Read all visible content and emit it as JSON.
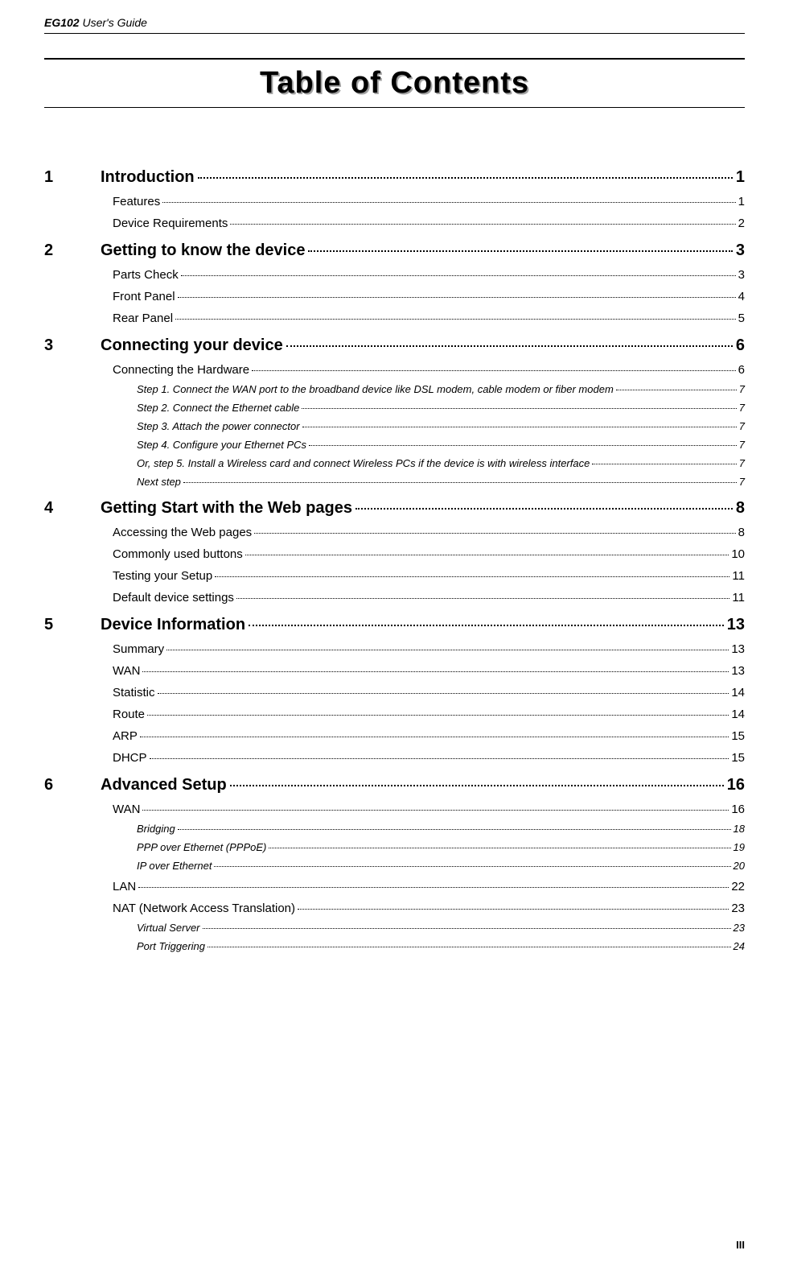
{
  "header": {
    "product": "EG102",
    "doc_type": "User's Guide"
  },
  "toc_title": "Table of Contents",
  "page_number": "III",
  "sections": [
    {
      "num": "1",
      "title": "Introduction",
      "page": "1",
      "subs": [
        {
          "title": "Features",
          "page": "1"
        },
        {
          "title": "Device Requirements",
          "page": "2"
        }
      ]
    },
    {
      "num": "2",
      "title": "Getting to know the device",
      "page": "3",
      "subs": [
        {
          "title": "Parts Check",
          "page": "3"
        },
        {
          "title": "Front Panel",
          "page": "4"
        },
        {
          "title": "Rear Panel",
          "page": "5"
        }
      ]
    },
    {
      "num": "3",
      "title": "Connecting your device",
      "page": "6",
      "subs": [
        {
          "title": "Connecting the Hardware",
          "page": "6",
          "subs2": [
            {
              "title": "Step 1. Connect the WAN port to the broadband device like DSL modem, cable modem or fiber modem",
              "page": "7"
            },
            {
              "title": "Step 2. Connect the Ethernet cable",
              "page": "7"
            },
            {
              "title": "Step 3. Attach the power connector",
              "page": "7"
            },
            {
              "title": "Step 4. Configure your Ethernet PCs",
              "page": "7"
            },
            {
              "title": "Or, step 5. Install a Wireless card and connect Wireless PCs if the device is with wireless interface",
              "page": "7"
            },
            {
              "title": "Next step",
              "page": "7"
            }
          ]
        }
      ]
    },
    {
      "num": "4",
      "title": "Getting Start with the Web pages",
      "page": "8",
      "subs": [
        {
          "title": "Accessing the Web pages",
          "page": "8"
        },
        {
          "title": "Commonly used buttons",
          "page": "10"
        },
        {
          "title": "Testing your Setup",
          "page": "11"
        },
        {
          "title": "Default device settings",
          "page": "11"
        }
      ]
    },
    {
      "num": "5",
      "title": "Device Information",
      "page": "13",
      "subs": [
        {
          "title": "Summary",
          "page": "13"
        },
        {
          "title": "WAN",
          "page": "13"
        },
        {
          "title": "Statistic",
          "page": "14"
        },
        {
          "title": "Route",
          "page": "14"
        },
        {
          "title": "ARP",
          "page": "15"
        },
        {
          "title": "DHCP",
          "page": "15"
        }
      ]
    },
    {
      "num": "6",
      "title": "Advanced Setup",
      "page": "16",
      "subs": [
        {
          "title": "WAN",
          "page": "16",
          "subs2": [
            {
              "title": "Bridging",
              "page": "18"
            },
            {
              "title": "PPP over Ethernet (PPPoE)",
              "page": "19"
            },
            {
              "title": "IP over Ethernet",
              "page": "20"
            }
          ]
        },
        {
          "title": "LAN",
          "page": "22"
        },
        {
          "title": "NAT (Network Access Translation)",
          "page": "23",
          "subs2": [
            {
              "title": "Virtual Server",
              "page": "23"
            },
            {
              "title": "Port Triggering",
              "page": "24"
            }
          ]
        }
      ]
    }
  ]
}
